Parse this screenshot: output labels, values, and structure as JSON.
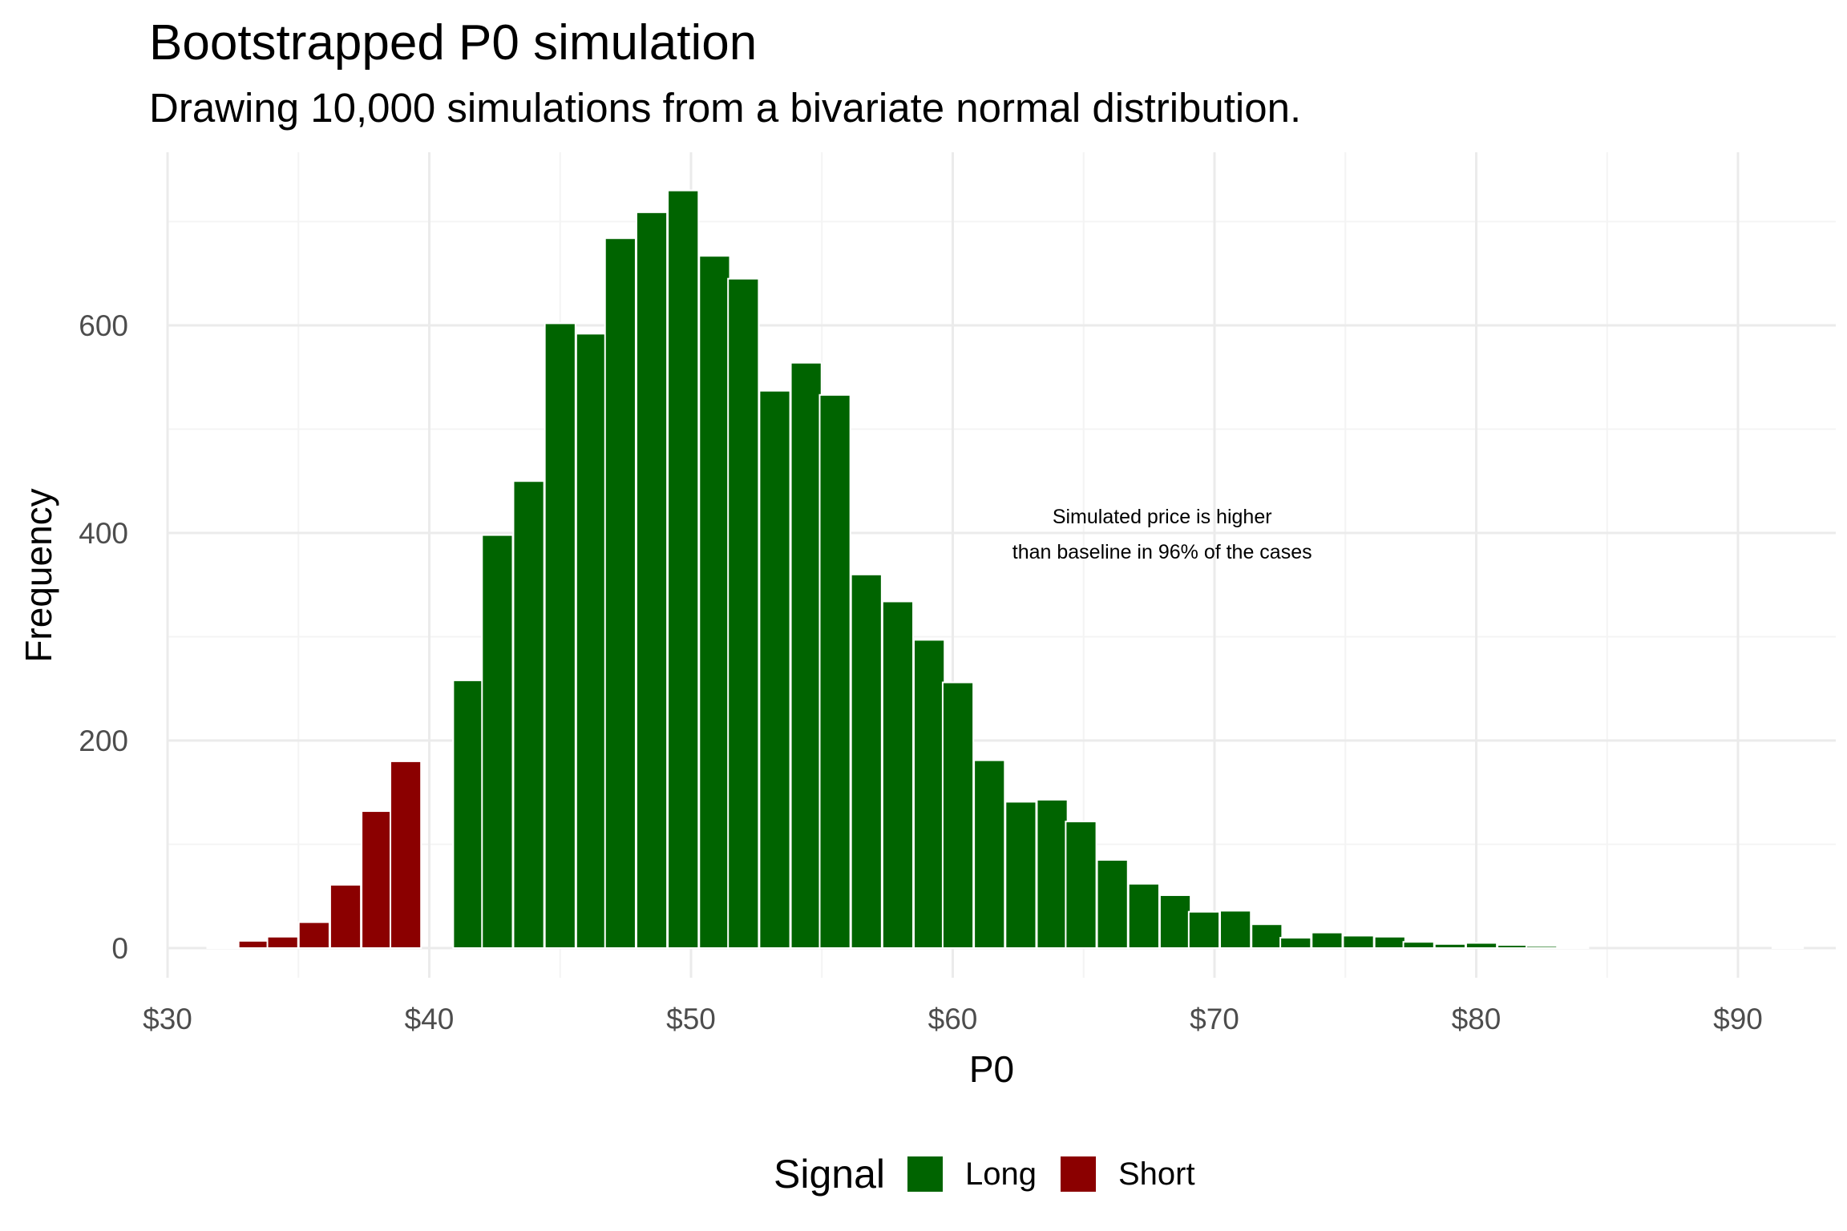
{
  "title": "Bootstrapped P0 simulation",
  "subtitle": "Drawing 10,000 simulations from a bivariate normal distribution.",
  "colors": {
    "long": "#006400",
    "short": "#8b0000",
    "grid_major": "#ebebeb",
    "grid_minor": "#f4f4f4",
    "tick_text": "#4d4d4d"
  },
  "chart_data": {
    "type": "bar",
    "xlabel": "P0",
    "ylabel": "Frequency",
    "xlim": [
      29.5,
      93.5
    ],
    "ylim": [
      0,
      760
    ],
    "x_ticks": [
      30,
      40,
      50,
      60,
      70,
      80,
      90
    ],
    "x_tick_labels": [
      "$30",
      "$40",
      "$50",
      "$60",
      "$70",
      "$80",
      "$90"
    ],
    "y_ticks": [
      0,
      200,
      400,
      600
    ],
    "y_tick_labels": [
      "0",
      "200",
      "400",
      "600"
    ],
    "grid": true,
    "bin_width": 1.17,
    "annotation": {
      "lines": [
        "Simulated price is higher",
        "than baseline in 96% of the cases"
      ],
      "x": 68.0,
      "y": 406
    },
    "legend": {
      "title": "Signal",
      "position": "bottom",
      "entries": [
        "Long",
        "Short"
      ]
    },
    "series": [
      {
        "name": "Short",
        "bin_centers": [
          32.1,
          33.3,
          34.4,
          35.6,
          36.8,
          38.0,
          39.1,
          40.3
        ],
        "values": [
          1,
          7,
          11,
          25,
          61,
          132,
          180,
          0
        ]
      },
      {
        "name": "Long",
        "bin_centers": [
          40.3,
          41.5,
          42.6,
          43.8,
          45.0,
          46.2,
          47.3,
          48.5,
          49.7,
          50.9,
          52.0,
          53.2,
          54.4,
          55.5,
          56.7,
          57.9,
          59.1,
          60.2,
          61.4,
          62.6,
          63.8,
          64.9,
          66.1,
          67.3,
          68.5,
          69.6,
          70.8,
          72.0,
          73.1,
          74.3,
          75.5,
          76.7,
          77.8,
          79.0,
          80.2,
          81.4,
          82.5,
          83.7,
          84.9,
          86.1,
          87.2,
          88.4,
          89.6,
          90.8,
          91.9
        ],
        "values": [
          0,
          258,
          398,
          450,
          602,
          592,
          684,
          709,
          730,
          667,
          645,
          537,
          564,
          533,
          360,
          334,
          297,
          256,
          181,
          141,
          143,
          122,
          85,
          62,
          51,
          35,
          36,
          23,
          10,
          15,
          12,
          11,
          6,
          4,
          5,
          3,
          2,
          1,
          0,
          0,
          0,
          0,
          0,
          0,
          1
        ]
      }
    ]
  }
}
